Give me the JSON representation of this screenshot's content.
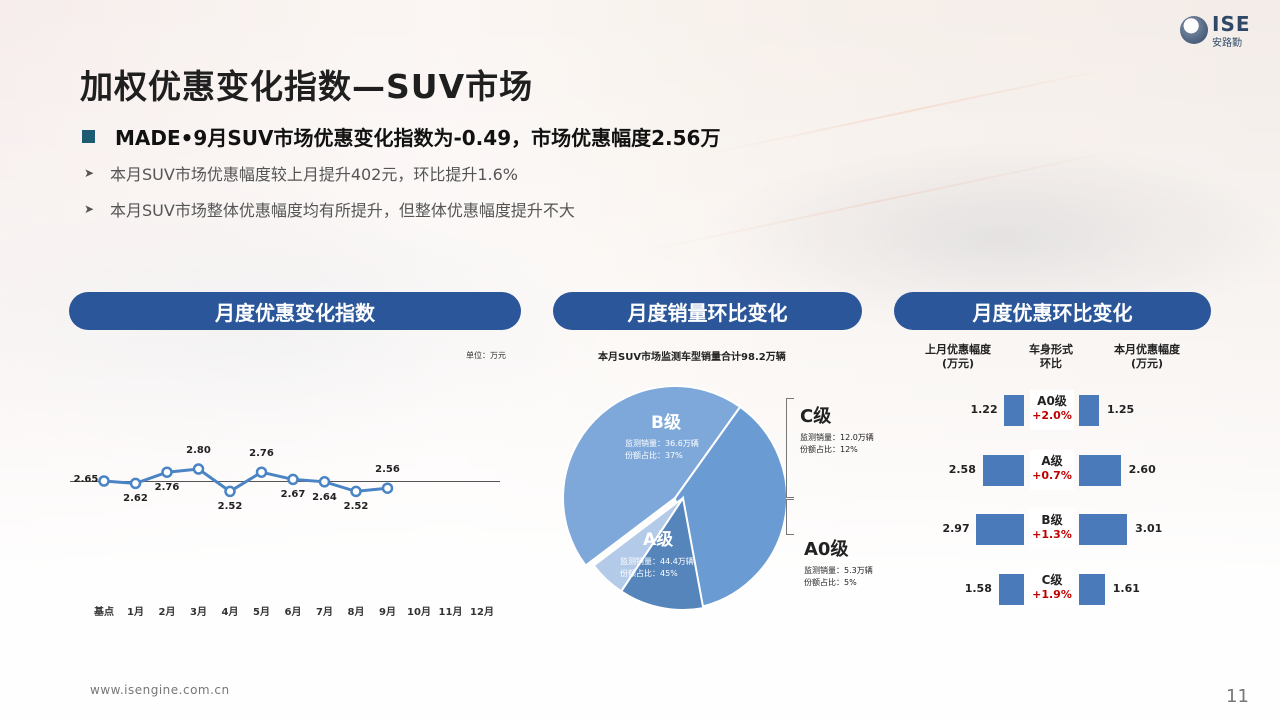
{
  "title": "加权优惠变化指数—SUV市场",
  "logo": {
    "brand": "ISE",
    "cn": "安路勤"
  },
  "bullets": {
    "main": "MADE•9月SUV市场优惠变化指数为-0.49，市场优惠幅度2.56万",
    "sub": [
      "本月SUV市场优惠幅度较上月提升402元，环比提升1.6%",
      "本月SUV市场整体优惠幅度均有所提升，但整体优惠幅度提升不大"
    ]
  },
  "panels": {
    "left": "月度优惠变化指数",
    "middle": "月度销量环比变化",
    "right": "月度优惠环比变化"
  },
  "line_chart": {
    "unit": "单位：万元",
    "months": [
      "基点",
      "1月",
      "2月",
      "3月",
      "4月",
      "5月",
      "6月",
      "7月",
      "8月",
      "9月",
      "10月",
      "11月",
      "12月"
    ]
  },
  "pie": {
    "title": "本月SUV市场监测车型销量合计98.2万辆",
    "segments": [
      {
        "name": "B级",
        "line1": "监测销量：36.6万辆",
        "line2": "份额占比：37%"
      },
      {
        "name": "C级",
        "line1": "监测销量：12.0万辆",
        "line2": "份额占比：12%"
      },
      {
        "name": "A0级",
        "line1": "监测销量：5.3万辆",
        "line2": "份额占比：5%"
      },
      {
        "name": "A级",
        "line1": "监测销量：44.4万辆",
        "line2": "份额占比：45%"
      }
    ]
  },
  "comparison": {
    "headers": {
      "prev": "上月优惠幅度\n(万元)",
      "cls": "车身形式\n环比",
      "curr": "本月优惠幅度\n(万元)"
    },
    "rows": [
      {
        "cls": "A0级",
        "change": "+2.0%",
        "prev": "1.22",
        "curr": "1.25"
      },
      {
        "cls": "A级",
        "change": "+0.7%",
        "prev": "2.58",
        "curr": "2.60"
      },
      {
        "cls": "B级",
        "change": "+1.3%",
        "prev": "2.97",
        "curr": "3.01"
      },
      {
        "cls": "C级",
        "change": "+1.9%",
        "prev": "1.58",
        "curr": "1.61"
      }
    ]
  },
  "chart_data": [
    {
      "type": "line",
      "title": "月度优惠变化指数",
      "x": [
        "基点",
        "1月",
        "2月",
        "3月",
        "4月",
        "5月",
        "6月",
        "7月",
        "8月",
        "9月"
      ],
      "values": [
        2.65,
        2.62,
        2.76,
        2.8,
        2.52,
        2.76,
        2.67,
        2.64,
        2.52,
        2.56
      ],
      "labels": [
        "2.65",
        "2.62",
        "2.76",
        "2.80",
        "2.52",
        "2.76",
        "2.67",
        "2.64",
        "2.52",
        "2.56"
      ],
      "ylabel": "单位：万元",
      "color": "#4a84c4"
    },
    {
      "type": "pie",
      "title": "本月SUV市场监测车型销量合计98.2万辆",
      "categories": [
        "B级",
        "C级",
        "A0级",
        "A级"
      ],
      "values": [
        36.6,
        12.0,
        5.3,
        44.4
      ],
      "shares": [
        37,
        12,
        5,
        45
      ],
      "colors": [
        "#6a9bd3",
        "#5585bb",
        "#b3cbe8",
        "#7fa8da"
      ]
    },
    {
      "type": "bar",
      "title": "月度优惠环比变化",
      "categories": [
        "A0级",
        "A级",
        "B级",
        "C级"
      ],
      "series": [
        {
          "name": "上月优惠幅度(万元)",
          "values": [
            1.22,
            2.58,
            2.97,
            1.58
          ]
        },
        {
          "name": "本月优惠幅度(万元)",
          "values": [
            1.25,
            2.6,
            3.01,
            1.61
          ]
        }
      ],
      "change": [
        "+2.0%",
        "+0.7%",
        "+1.3%",
        "+1.9%"
      ],
      "color": "#4a7ab9"
    }
  ],
  "footer": {
    "url": "www.isengine.com.cn",
    "page": "11"
  }
}
